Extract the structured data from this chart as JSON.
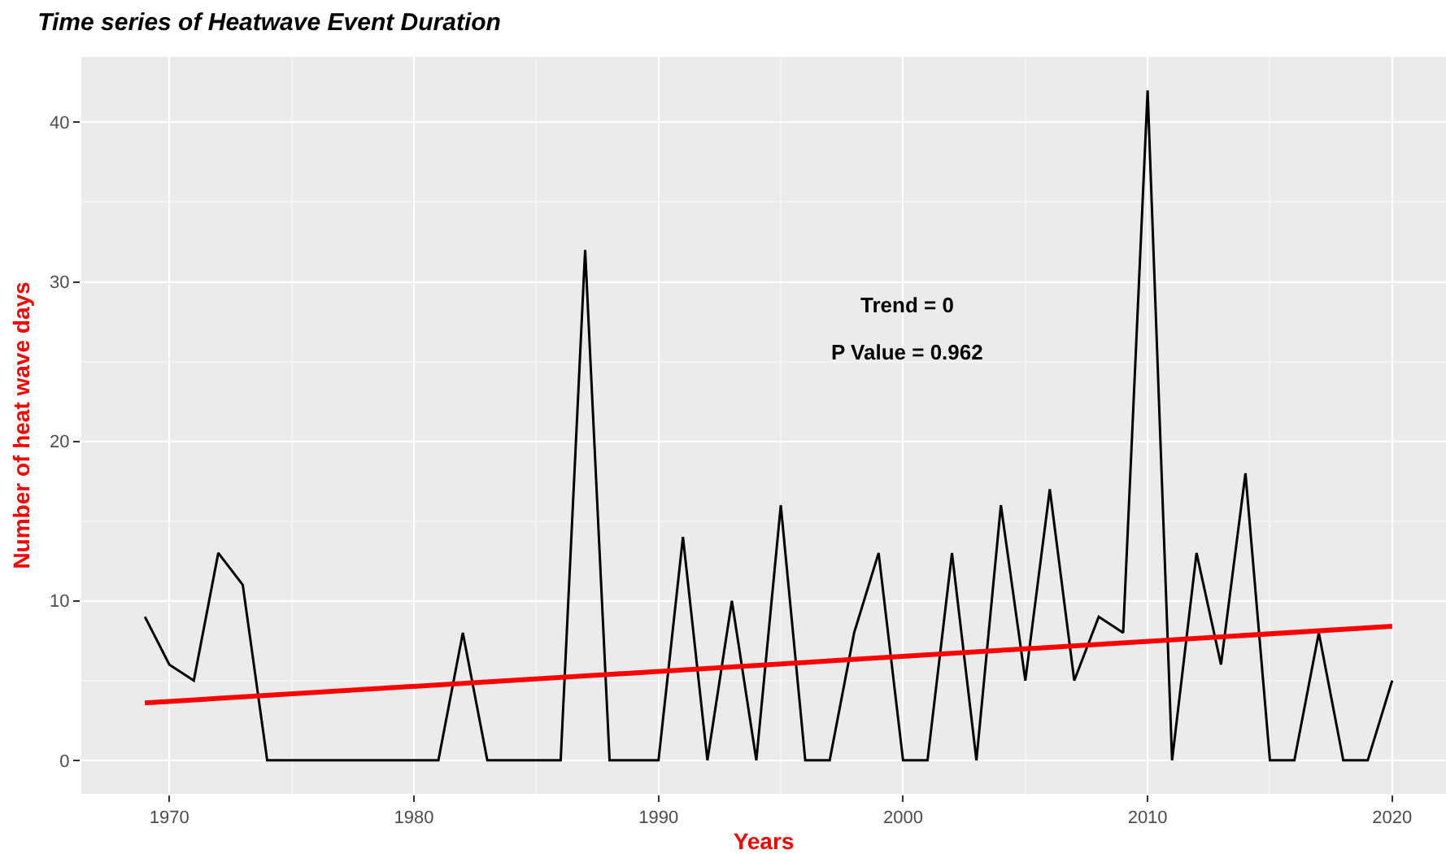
{
  "chart_data": {
    "type": "line",
    "title": "Time series of Heatwave Event Duration",
    "xlabel": "Years",
    "ylabel": "Number of heat wave days",
    "x": [
      1969,
      1970,
      1971,
      1972,
      1973,
      1974,
      1975,
      1976,
      1977,
      1978,
      1979,
      1980,
      1981,
      1982,
      1983,
      1984,
      1985,
      1986,
      1987,
      1988,
      1989,
      1990,
      1991,
      1992,
      1993,
      1994,
      1995,
      1996,
      1997,
      1998,
      1999,
      2000,
      2001,
      2002,
      2003,
      2004,
      2005,
      2006,
      2007,
      2008,
      2009,
      2010,
      2011,
      2012,
      2013,
      2014,
      2015,
      2016,
      2017,
      2018,
      2019,
      2020
    ],
    "series": [
      {
        "color": "#000000",
        "values": [
          9,
          6,
          5,
          13,
          11,
          0,
          0,
          0,
          0,
          0,
          0,
          0,
          0,
          8,
          0,
          0,
          0,
          0,
          32,
          0,
          0,
          0,
          14,
          0,
          10,
          0,
          16,
          0,
          0,
          8,
          13,
          0,
          0,
          13,
          0,
          16,
          5,
          17,
          5,
          9,
          8,
          42,
          0,
          13,
          6,
          18,
          0,
          0,
          8,
          0,
          0,
          5
        ]
      },
      {
        "type": "line",
        "color": "#ff0000",
        "x": [
          1969,
          2020
        ],
        "values": [
          3.6,
          8.4
        ]
      }
    ],
    "annotations": [
      "Trend = 0",
      "P Value = 0.962"
    ],
    "xlim": [
      1966.4,
      2022.2
    ],
    "xticks": [
      1970,
      1980,
      1990,
      2000,
      2010,
      2020
    ],
    "ylim": [
      -2.1,
      44.1
    ],
    "yticks": [
      0,
      10,
      20,
      30,
      40
    ],
    "grid": true,
    "marker": "none",
    "line_style": "solid"
  }
}
